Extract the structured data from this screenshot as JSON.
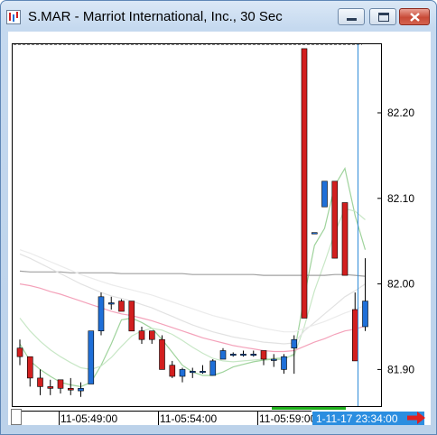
{
  "window": {
    "title": "S.MAR - Marriot International, Inc., 30 Sec",
    "icons": [
      "chart-app-icon",
      "minimize-icon",
      "maximize-icon",
      "close-icon",
      "next-arrow-icon"
    ],
    "colors": {
      "up": "#1f6fd8",
      "down": "#d21f1f",
      "cursor": "#2e8bd8",
      "time_badge": "#2b8ee0"
    }
  },
  "chart_data": {
    "type": "candlestick",
    "yticks": [
      "82.20",
      "82.10",
      "82.00",
      "81.90"
    ],
    "xticks": [
      "11-05:49:00",
      "11-05:54:00",
      "11-05:59:00"
    ],
    "ylim": [
      81.86,
      82.28
    ],
    "cursor_label": "1-11-17 23:34:00",
    "candles": [
      {
        "o": 81.925,
        "h": 81.935,
        "l": 81.905,
        "c": 81.915
      },
      {
        "o": 81.915,
        "h": 81.915,
        "l": 81.88,
        "c": 81.89
      },
      {
        "o": 81.89,
        "h": 81.9,
        "l": 81.87,
        "c": 81.88
      },
      {
        "o": 81.88,
        "h": 81.888,
        "l": 81.87,
        "c": 81.878
      },
      {
        "o": 81.888,
        "h": 81.888,
        "l": 81.872,
        "c": 81.878
      },
      {
        "o": 81.878,
        "h": 81.89,
        "l": 81.87,
        "c": 81.876
      },
      {
        "o": 81.875,
        "h": 81.885,
        "l": 81.868,
        "c": 81.878
      },
      {
        "o": 81.883,
        "h": 81.945,
        "l": 81.883,
        "c": 81.945
      },
      {
        "o": 81.945,
        "h": 81.99,
        "l": 81.94,
        "c": 81.985
      },
      {
        "o": 81.978,
        "h": 81.985,
        "l": 81.97,
        "c": 81.978
      },
      {
        "o": 81.98,
        "h": 81.982,
        "l": 81.968,
        "c": 81.968
      },
      {
        "o": 81.98,
        "h": 81.98,
        "l": 81.945,
        "c": 81.945
      },
      {
        "o": 81.945,
        "h": 81.95,
        "l": 81.93,
        "c": 81.935
      },
      {
        "o": 81.945,
        "h": 81.945,
        "l": 81.93,
        "c": 81.935
      },
      {
        "o": 81.935,
        "h": 81.94,
        "l": 81.9,
        "c": 81.9
      },
      {
        "o": 81.905,
        "h": 81.91,
        "l": 81.89,
        "c": 81.892
      },
      {
        "o": 81.892,
        "h": 81.902,
        "l": 81.885,
        "c": 81.9
      },
      {
        "o": 81.898,
        "h": 81.902,
        "l": 81.89,
        "c": 81.898
      },
      {
        "o": 81.898,
        "h": 81.905,
        "l": 81.895,
        "c": 81.898
      },
      {
        "o": 81.893,
        "h": 81.912,
        "l": 81.893,
        "c": 81.91
      },
      {
        "o": 81.912,
        "h": 81.925,
        "l": 81.912,
        "c": 81.922
      },
      {
        "o": 81.918,
        "h": 81.92,
        "l": 81.915,
        "c": 81.918
      },
      {
        "o": 81.918,
        "h": 81.922,
        "l": 81.915,
        "c": 81.918
      },
      {
        "o": 81.918,
        "h": 81.922,
        "l": 81.915,
        "c": 81.918
      },
      {
        "o": 81.922,
        "h": 81.922,
        "l": 81.905,
        "c": 81.912
      },
      {
        "o": 81.912,
        "h": 81.918,
        "l": 81.903,
        "c": 81.912
      },
      {
        "o": 81.9,
        "h": 81.918,
        "l": 81.895,
        "c": 81.915
      },
      {
        "o": 81.925,
        "h": 81.94,
        "l": 81.895,
        "c": 81.935
      },
      {
        "o": 82.275,
        "h": 82.275,
        "l": 81.96,
        "c": 81.96
      },
      {
        "o": 82.06,
        "h": 82.06,
        "l": 82.06,
        "c": 82.06
      },
      {
        "o": 82.09,
        "h": 82.12,
        "l": 82.09,
        "c": 82.12
      },
      {
        "o": 82.12,
        "h": 82.12,
        "l": 82.03,
        "c": 82.03
      },
      {
        "o": 82.095,
        "h": 82.095,
        "l": 82.01,
        "c": 82.01
      },
      {
        "o": 81.97,
        "h": 81.99,
        "l": 81.91,
        "c": 81.91
      },
      {
        "o": 81.95,
        "h": 82.03,
        "l": 81.945,
        "c": 81.98
      }
    ],
    "overlays": [
      {
        "name": "",
        "color": "#9fd39c",
        "values": [
          81.93,
          81.91,
          81.9,
          81.892,
          81.885,
          81.882,
          81.88,
          81.885,
          81.905,
          81.93,
          81.958,
          81.96,
          81.955,
          81.948,
          81.935,
          81.92,
          81.905,
          81.897,
          81.893,
          81.893,
          81.897,
          81.903,
          81.906,
          81.909,
          81.911,
          81.912,
          81.912,
          81.918,
          81.985,
          82.045,
          82.065,
          82.115,
          82.135,
          82.08,
          82.04
        ]
      },
      {
        "name": "",
        "color": "#c8e7c6",
        "values": [
          81.96,
          81.945,
          81.933,
          81.923,
          81.915,
          81.908,
          81.902,
          81.9,
          81.904,
          81.914,
          81.927,
          81.939,
          81.945,
          81.948,
          81.946,
          81.941,
          81.934,
          81.926,
          81.919,
          81.913,
          81.91,
          81.909,
          81.91,
          81.911,
          81.912,
          81.913,
          81.914,
          81.916,
          81.95,
          81.992,
          82.025,
          82.06,
          82.088,
          82.085,
          82.075
        ]
      },
      {
        "name": "",
        "color": "#f4a2ba",
        "values": [
          82.0,
          81.998,
          81.995,
          81.991,
          81.988,
          81.984,
          81.98,
          81.976,
          81.972,
          81.968,
          81.965,
          81.963,
          81.96,
          81.957,
          81.953,
          81.949,
          81.945,
          81.941,
          81.937,
          81.934,
          81.931,
          81.928,
          81.926,
          81.924,
          81.922,
          81.921,
          81.921,
          81.922,
          81.927,
          81.932,
          81.936,
          81.941,
          81.945,
          81.947,
          81.951
        ]
      },
      {
        "name": "",
        "color": "#a0a0a0",
        "values": [
          82.015,
          82.014,
          82.014,
          82.014,
          82.014,
          82.013,
          82.013,
          82.013,
          82.013,
          82.013,
          82.012,
          82.012,
          82.012,
          82.012,
          82.012,
          82.012,
          82.012,
          82.011,
          82.011,
          82.011,
          82.011,
          82.011,
          82.011,
          82.011,
          82.01,
          82.01,
          82.01,
          82.01,
          82.01,
          82.01,
          82.01,
          82.011,
          82.011,
          82.01,
          82.009
        ]
      },
      {
        "name": "",
        "color": "#e2e2e2",
        "values": [
          82.035,
          82.03,
          82.024,
          82.018,
          82.012,
          82.006,
          82.0,
          81.995,
          81.99,
          81.986,
          81.983,
          81.98,
          81.976,
          81.972,
          81.967,
          81.962,
          81.957,
          81.952,
          81.948,
          81.944,
          81.941,
          81.938,
          81.936,
          81.934,
          81.932,
          81.931,
          81.93,
          81.931,
          81.945,
          81.955,
          81.965,
          81.975,
          81.985,
          81.992,
          82.0
        ]
      },
      {
        "name": "",
        "color": "#ebebeb",
        "values": [
          82.04,
          82.036,
          82.031,
          82.026,
          82.021,
          82.016,
          82.011,
          82.007,
          82.003,
          81.999,
          81.996,
          81.993,
          81.99,
          81.987,
          81.983,
          81.979,
          81.975,
          81.971,
          81.967,
          81.963,
          81.96,
          81.957,
          81.954,
          81.951,
          81.948,
          81.946,
          81.944,
          81.944,
          81.948,
          81.952,
          81.956,
          81.961,
          81.966,
          81.97,
          81.975
        ]
      }
    ]
  }
}
